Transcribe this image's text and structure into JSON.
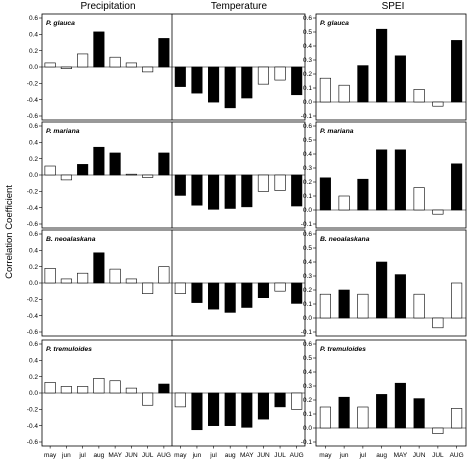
{
  "chart_data": {
    "type": "bar",
    "ylabel": "Correlation Coefficient",
    "columns": [
      "Precipitation",
      "Temperature",
      "SPEI"
    ],
    "x_ticks": [
      "may",
      "jun",
      "jul",
      "aug",
      "MAY",
      "JUN",
      "JUL",
      "AUG"
    ],
    "left_ylim": [
      -0.6,
      0.6
    ],
    "left_yticks": [
      "-0.6",
      "-0.4",
      "-0.2",
      "0.0",
      "0.2",
      "0.4",
      "0.6"
    ],
    "spei_ylim": [
      -0.1,
      0.6
    ],
    "spei_yticks": [
      "-0.1",
      "0.0",
      "0.1",
      "0.2",
      "0.3",
      "0.4",
      "0.5",
      "0.6"
    ],
    "grid": false,
    "rows": [
      {
        "species": "P. glauca",
        "precipitation": {
          "values": [
            0.05,
            -0.02,
            0.16,
            0.43,
            0.12,
            0.05,
            -0.06,
            0.35
          ],
          "significant": [
            false,
            false,
            false,
            true,
            false,
            false,
            false,
            true
          ]
        },
        "temperature": {
          "values": [
            -0.24,
            -0.32,
            -0.43,
            -0.5,
            -0.38,
            -0.21,
            -0.16,
            -0.34
          ],
          "significant": [
            true,
            true,
            true,
            true,
            true,
            false,
            false,
            true
          ]
        },
        "spei": {
          "values": [
            0.17,
            0.12,
            0.26,
            0.52,
            0.33,
            0.09,
            -0.03,
            0.44
          ],
          "significant": [
            false,
            false,
            true,
            true,
            true,
            false,
            false,
            true
          ]
        }
      },
      {
        "species": "P. mariana",
        "precipitation": {
          "values": [
            0.11,
            -0.06,
            0.13,
            0.34,
            0.27,
            0.01,
            -0.03,
            0.27
          ],
          "significant": [
            false,
            false,
            true,
            true,
            true,
            false,
            false,
            true
          ]
        },
        "temperature": {
          "values": [
            -0.25,
            -0.37,
            -0.42,
            -0.41,
            -0.39,
            -0.2,
            -0.19,
            -0.38
          ],
          "significant": [
            true,
            true,
            true,
            true,
            true,
            false,
            false,
            true
          ]
        },
        "spei": {
          "values": [
            0.23,
            0.1,
            0.22,
            0.43,
            0.43,
            0.16,
            -0.03,
            0.33
          ],
          "significant": [
            true,
            false,
            true,
            true,
            true,
            false,
            false,
            true
          ]
        }
      },
      {
        "species": "B. neoalaskana",
        "precipitation": {
          "values": [
            0.18,
            0.05,
            0.12,
            0.37,
            0.17,
            0.05,
            -0.13,
            0.2
          ],
          "significant": [
            false,
            false,
            false,
            true,
            false,
            false,
            false,
            false
          ]
        },
        "temperature": {
          "values": [
            -0.13,
            -0.24,
            -0.32,
            -0.36,
            -0.3,
            -0.18,
            -0.1,
            -0.25
          ],
          "significant": [
            false,
            true,
            true,
            true,
            true,
            true,
            false,
            true
          ]
        },
        "spei": {
          "values": [
            0.17,
            0.2,
            0.17,
            0.4,
            0.31,
            0.17,
            -0.07,
            0.25
          ],
          "significant": [
            false,
            true,
            false,
            true,
            true,
            false,
            false,
            false
          ]
        }
      },
      {
        "species": "P. tremuloides",
        "precipitation": {
          "values": [
            0.13,
            0.08,
            0.08,
            0.18,
            0.15,
            0.06,
            -0.15,
            0.11
          ],
          "significant": [
            false,
            false,
            false,
            false,
            false,
            false,
            false,
            true
          ]
        },
        "temperature": {
          "values": [
            -0.17,
            -0.45,
            -0.4,
            -0.4,
            -0.42,
            -0.32,
            -0.17,
            -0.2
          ],
          "significant": [
            false,
            true,
            true,
            true,
            true,
            true,
            true,
            false
          ]
        },
        "spei": {
          "values": [
            0.15,
            0.22,
            0.15,
            0.24,
            0.32,
            0.21,
            -0.04,
            0.14
          ],
          "significant": [
            false,
            true,
            false,
            true,
            true,
            true,
            false,
            false
          ]
        }
      }
    ]
  }
}
